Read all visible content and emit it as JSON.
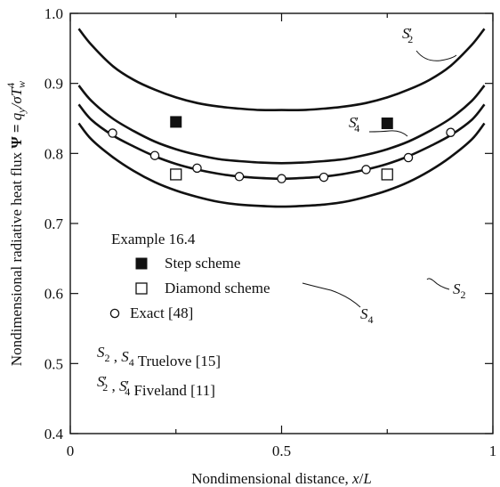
{
  "chart_data": {
    "type": "line",
    "xlabel": "Nondimensional distance, x/L",
    "ylabel": "Nondimensional radiative heat flux  Ψ = q_y/σT_w^4",
    "xlim": [
      0,
      1
    ],
    "ylim": [
      0.4,
      1.0
    ],
    "xticks": [
      0,
      0.5,
      1
    ],
    "xtick_labels": [
      "0",
      "0.5",
      "1"
    ],
    "yticks": [
      0.4,
      0.5,
      0.6,
      0.7,
      0.8,
      0.9,
      1.0
    ],
    "ytick_labels": [
      "0.4",
      "0.5",
      "0.6",
      "0.7",
      "0.8",
      "0.9",
      "1.0"
    ],
    "grid": false,
    "series": [
      {
        "name": "S2′",
        "style": "line",
        "x": [
          0.02,
          0.05,
          0.1,
          0.15,
          0.2,
          0.25,
          0.3,
          0.35,
          0.4,
          0.45,
          0.5,
          0.55,
          0.6,
          0.65,
          0.7,
          0.75,
          0.8,
          0.85,
          0.9,
          0.95,
          0.98
        ],
        "y": [
          0.978,
          0.955,
          0.925,
          0.905,
          0.891,
          0.88,
          0.872,
          0.867,
          0.864,
          0.862,
          0.862,
          0.862,
          0.864,
          0.867,
          0.872,
          0.88,
          0.891,
          0.905,
          0.925,
          0.955,
          0.978
        ]
      },
      {
        "name": "S4′",
        "style": "line",
        "x": [
          0.02,
          0.05,
          0.1,
          0.15,
          0.2,
          0.25,
          0.3,
          0.35,
          0.4,
          0.45,
          0.5,
          0.55,
          0.6,
          0.65,
          0.7,
          0.75,
          0.8,
          0.85,
          0.9,
          0.95,
          0.98
        ],
        "y": [
          0.897,
          0.875,
          0.85,
          0.832,
          0.817,
          0.806,
          0.798,
          0.792,
          0.789,
          0.787,
          0.786,
          0.787,
          0.789,
          0.792,
          0.798,
          0.806,
          0.817,
          0.832,
          0.85,
          0.875,
          0.897
        ]
      },
      {
        "name": "S4",
        "style": "line",
        "x": [
          0.02,
          0.05,
          0.1,
          0.15,
          0.2,
          0.25,
          0.3,
          0.35,
          0.4,
          0.45,
          0.5,
          0.55,
          0.6,
          0.65,
          0.7,
          0.75,
          0.8,
          0.85,
          0.9,
          0.95,
          0.98
        ],
        "y": [
          0.87,
          0.848,
          0.826,
          0.81,
          0.796,
          0.785,
          0.777,
          0.771,
          0.767,
          0.765,
          0.764,
          0.765,
          0.767,
          0.771,
          0.777,
          0.785,
          0.796,
          0.81,
          0.826,
          0.848,
          0.87
        ]
      },
      {
        "name": "S2",
        "style": "line",
        "x": [
          0.02,
          0.05,
          0.1,
          0.15,
          0.2,
          0.25,
          0.3,
          0.35,
          0.4,
          0.45,
          0.5,
          0.55,
          0.6,
          0.65,
          0.7,
          0.75,
          0.8,
          0.85,
          0.9,
          0.95,
          0.98
        ],
        "y": [
          0.843,
          0.82,
          0.795,
          0.775,
          0.759,
          0.747,
          0.738,
          0.731,
          0.727,
          0.725,
          0.724,
          0.725,
          0.727,
          0.731,
          0.738,
          0.747,
          0.759,
          0.775,
          0.795,
          0.82,
          0.843
        ]
      },
      {
        "name": "Step scheme",
        "style": "filled-square",
        "x": [
          0.25,
          0.75
        ],
        "y": [
          0.845,
          0.843
        ]
      },
      {
        "name": "Diamond scheme",
        "style": "open-square",
        "x": [
          0.25,
          0.75
        ],
        "y": [
          0.77,
          0.77
        ]
      },
      {
        "name": "Exact [48]",
        "style": "open-circle",
        "x": [
          0.1,
          0.2,
          0.3,
          0.4,
          0.5,
          0.6,
          0.7,
          0.8,
          0.9
        ],
        "y": [
          0.829,
          0.797,
          0.779,
          0.767,
          0.764,
          0.766,
          0.777,
          0.794,
          0.83
        ]
      }
    ],
    "annotations": [
      {
        "base": "S",
        "sub": "2",
        "prime": true,
        "target": "S2′"
      },
      {
        "base": "S",
        "sub": "4",
        "prime": true,
        "target": "S4′"
      },
      {
        "base": "S",
        "sub": "2",
        "prime": false,
        "target": "S2"
      },
      {
        "base": "S",
        "sub": "4",
        "prime": false,
        "target": "S4"
      }
    ],
    "legend": {
      "placement": "bottom-left",
      "title": "Example 16.4",
      "entries": [
        "Step scheme",
        "Diamond scheme",
        "Exact [48]"
      ],
      "source_notes": [
        "S2 , S4 Truelove [15]",
        "S2′ , S4′ Fiveland [11]"
      ]
    }
  }
}
